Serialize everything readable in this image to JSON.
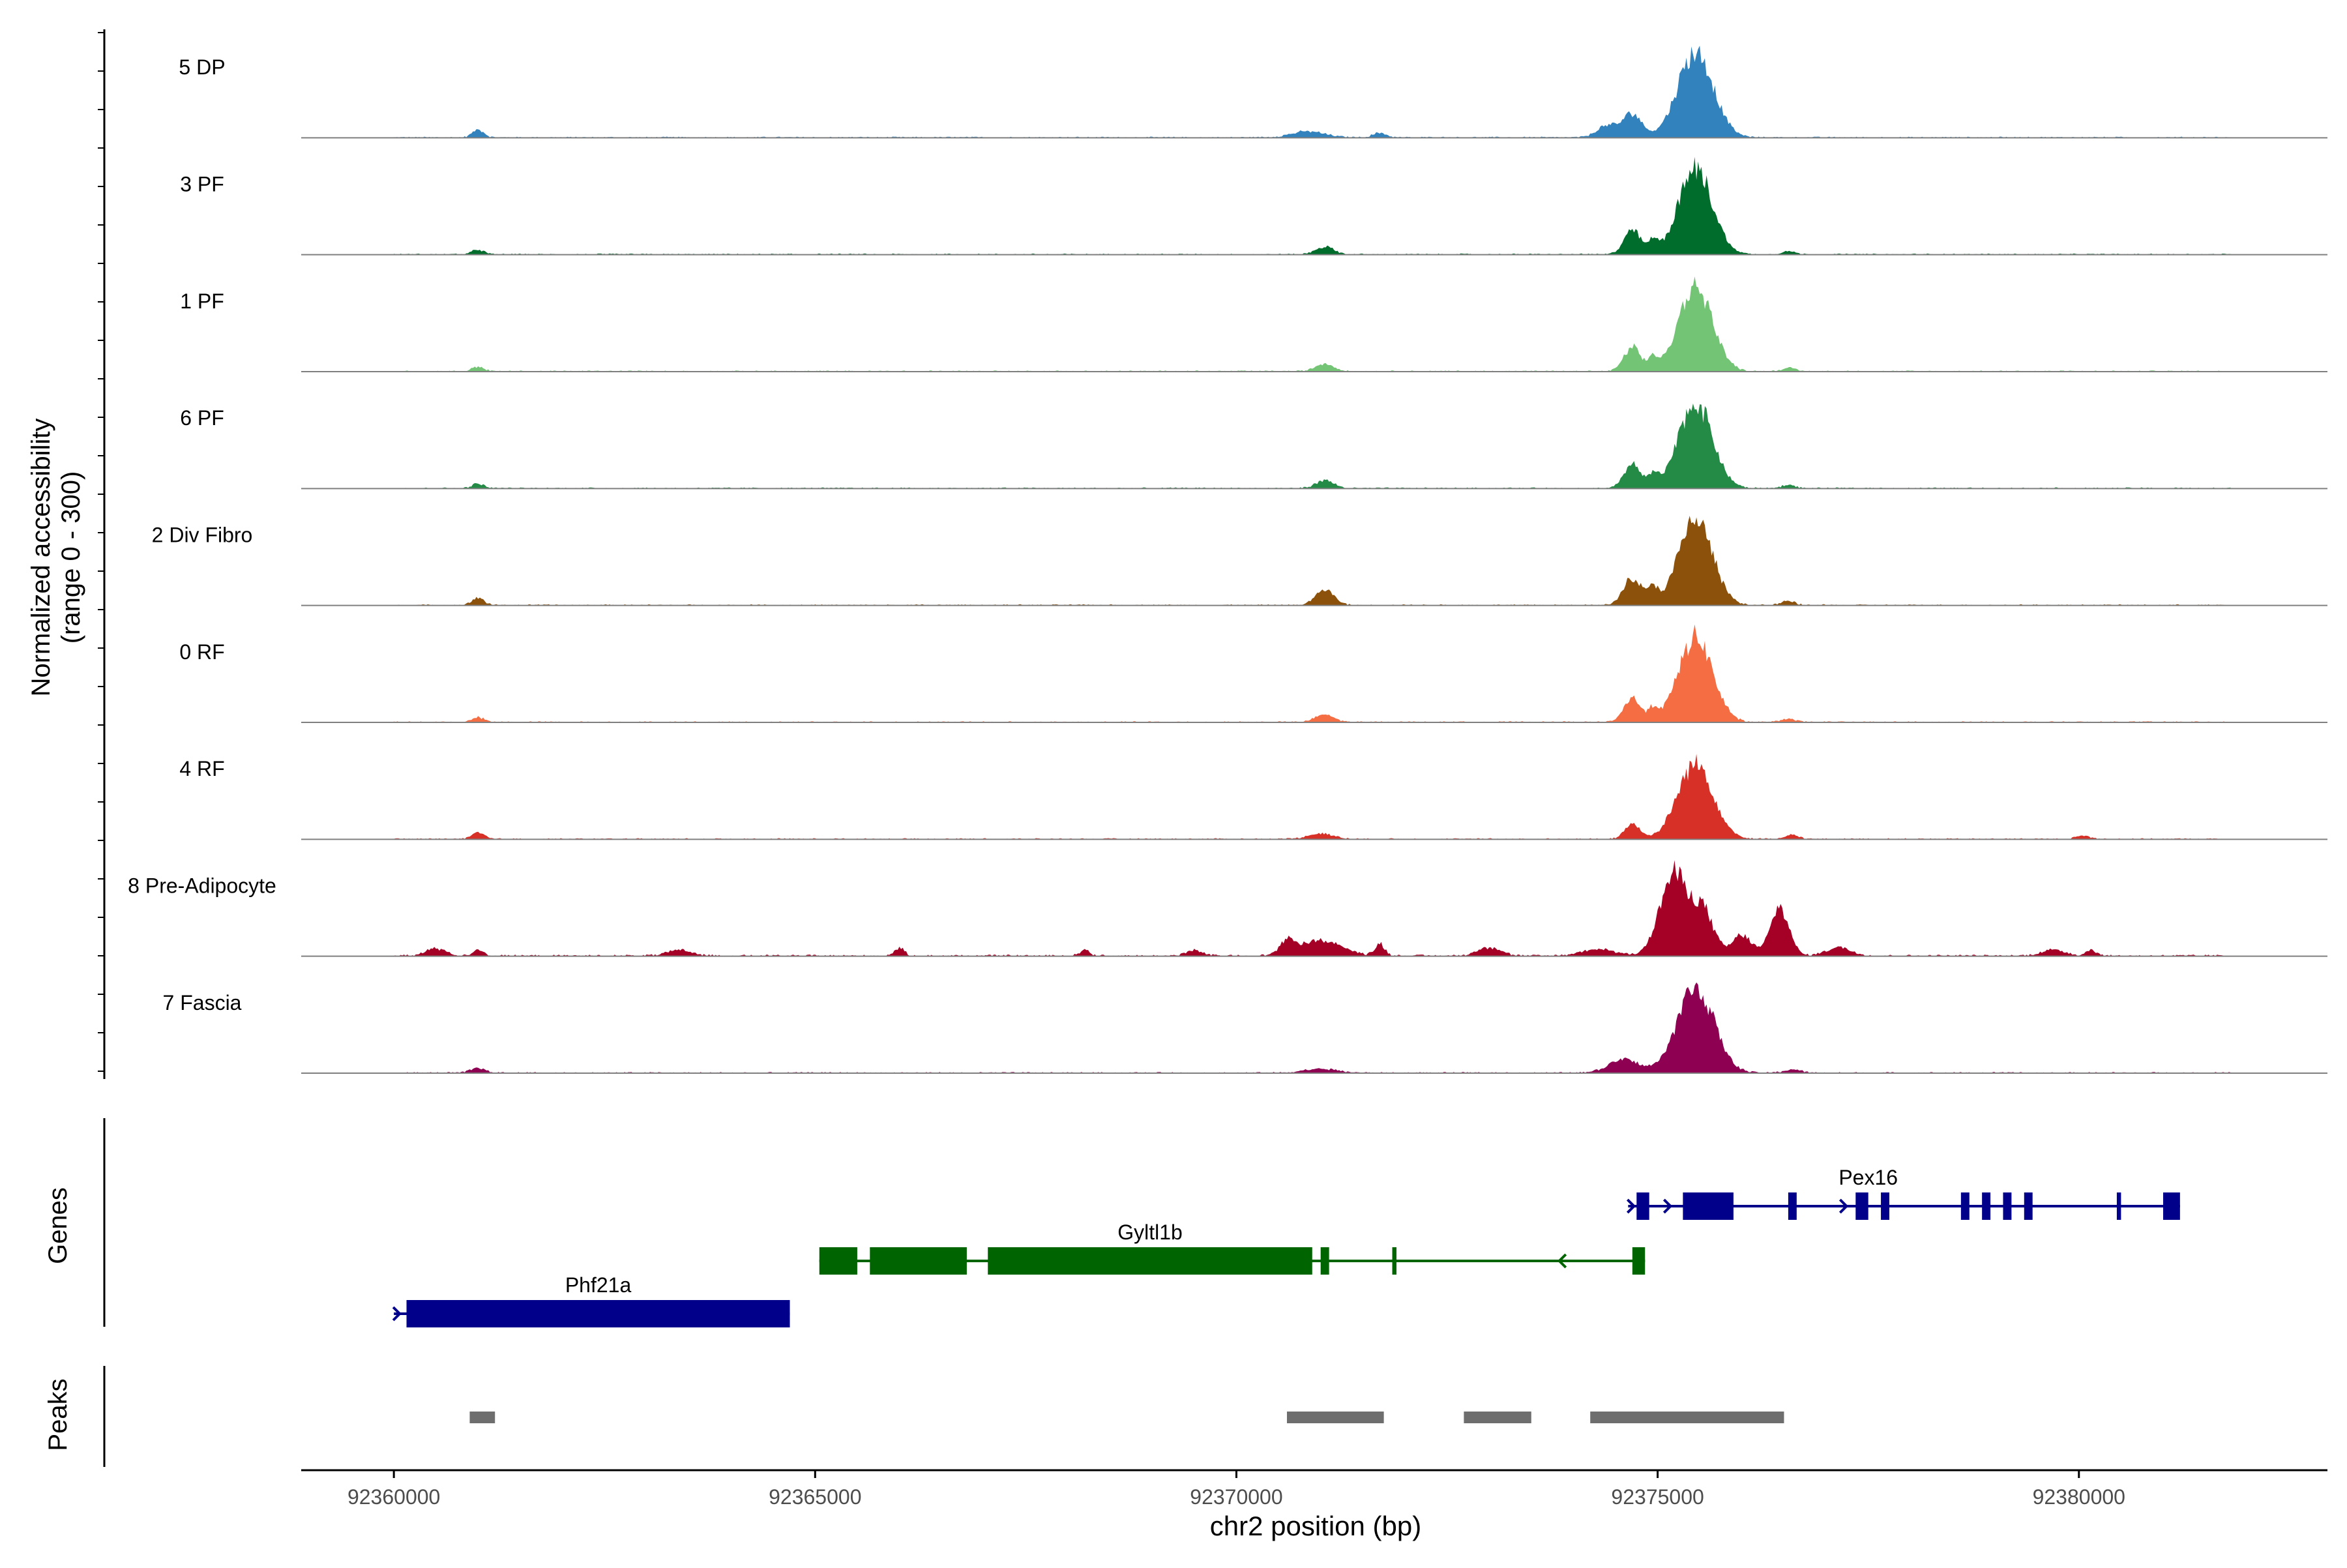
{
  "chart_data": {
    "type": "area",
    "title": "",
    "ylabel_line1": "Normalized accessibility",
    "ylabel_line2": "(range 0 - 300)",
    "xlabel": "chr2 position (bp)",
    "ylim": [
      0,
      300
    ],
    "xlim": [
      92358900,
      92382950
    ],
    "x_ticks": [
      92360000,
      92365000,
      92370000,
      92375000,
      92380000
    ],
    "x_tick_labels": [
      "92360000",
      "92365000",
      "92370000",
      "92375000",
      "92380000"
    ],
    "series": [
      {
        "name": "5 DP",
        "color": "#3182bd",
        "profile": "dp"
      },
      {
        "name": "3 PF",
        "color": "#006d2c",
        "profile": "std"
      },
      {
        "name": "1 PF",
        "color": "#74c476",
        "profile": "std"
      },
      {
        "name": "6 PF",
        "color": "#238b45",
        "profile": "std"
      },
      {
        "name": "2 Div Fibro",
        "color": "#8c510a",
        "profile": "fibro"
      },
      {
        "name": "0 RF",
        "color": "#f46d43",
        "profile": "std"
      },
      {
        "name": "4 RF",
        "color": "#d73027",
        "profile": "rf4"
      },
      {
        "name": "8 Pre-Adipocyte",
        "color": "#a50026",
        "profile": "preadipo"
      },
      {
        "name": "7 Fascia",
        "color": "#8e0152",
        "profile": "fascia"
      }
    ],
    "peak_features": {
      "main_peak_center_bp": 92375450,
      "main_peak_height": 250,
      "secondary_peak_bp": 92374700
    },
    "genes_track_label": "Genes",
    "genes": [
      {
        "name": "Phf21a",
        "strand": "+",
        "color": "#00008b",
        "row": 2,
        "start": 92360000,
        "end": 92364700,
        "exons": [
          [
            92360150,
            92364700
          ]
        ]
      },
      {
        "name": "Gyltl1b",
        "strand": "-",
        "color": "#006400",
        "row": 1,
        "start": 92365050,
        "end": 92374850,
        "exons": [
          [
            92365050,
            92365500
          ],
          [
            92365650,
            92366800
          ],
          [
            92367050,
            92370900
          ],
          [
            92371000,
            92371100
          ],
          [
            92371850,
            92371900
          ],
          [
            92374700,
            92374850
          ]
        ]
      },
      {
        "name": "Pex16",
        "strand": "+",
        "color": "#00008b",
        "row": 0,
        "start": 92374650,
        "end": 92381200,
        "exons": [
          [
            92374750,
            92374900
          ],
          [
            92375300,
            92375900
          ],
          [
            92376550,
            92376650
          ],
          [
            92377350,
            92377500
          ],
          [
            92377650,
            92377750
          ],
          [
            92378600,
            92378700
          ],
          [
            92378850,
            92378950
          ],
          [
            92379100,
            92379200
          ],
          [
            92379350,
            92379450
          ],
          [
            92380450,
            92380500
          ],
          [
            92381000,
            92381200
          ]
        ]
      }
    ],
    "peaks_track_label": "Peaks",
    "peaks": [
      [
        92360900,
        92361200
      ],
      [
        92370600,
        92371750
      ],
      [
        92372700,
        92373500
      ],
      [
        92374200,
        92376500
      ]
    ]
  }
}
